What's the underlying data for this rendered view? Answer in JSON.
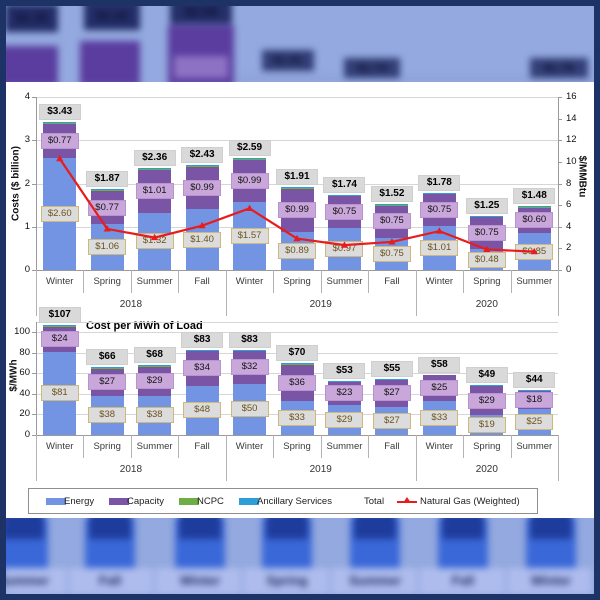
{
  "background": {
    "top_bar_labels": [
      "$2.36",
      "$2.43",
      "$2.59"
    ],
    "top_floating_labels": [
      "$1.91",
      "$1.74",
      "$1.78"
    ],
    "bottom_season_labels": [
      "Summer",
      "Fall",
      "Winter",
      "Spring",
      "Summer",
      "Fall",
      "Winter"
    ]
  },
  "colors": {
    "energy": "#7394e2",
    "capacity": "#7a55a5",
    "ncpc": "#6fae44",
    "ancillary": "#2e9ed9",
    "natural_gas_line": "#e81c1c",
    "total_badge_bg": "#d9d9d9",
    "capacity_badge_bg": "#c9a7db",
    "frame_border": "#1d3366",
    "backdrop": "#93a9df"
  },
  "chart_data": [
    {
      "type": "bar-line",
      "title": "",
      "ylabel_left": "Costs ($ billion)",
      "ylabel_right": "$/MMBtu",
      "ylim_left": [
        0,
        4
      ],
      "yticks_left": [
        0,
        1,
        2,
        3,
        4
      ],
      "ylim_right": [
        0,
        16
      ],
      "yticks_right": [
        0,
        2,
        4,
        6,
        8,
        10,
        12,
        14,
        16
      ],
      "grid": true,
      "legend_position": "bottom",
      "categories": [
        "Winter",
        "Spring",
        "Summer",
        "Fall",
        "Winter",
        "Spring",
        "Summer",
        "Fall",
        "Winter",
        "Spring",
        "Summer"
      ],
      "year_groups": [
        {
          "label": "2018",
          "span": 4
        },
        {
          "label": "2019",
          "span": 4
        },
        {
          "label": "2020",
          "span": 3
        }
      ],
      "series": [
        {
          "name": "Energy",
          "values": [
            2.6,
            1.06,
            1.32,
            1.4,
            1.57,
            0.89,
            0.97,
            0.75,
            1.01,
            0.48,
            0.85
          ]
        },
        {
          "name": "Capacity",
          "values": [
            0.77,
            0.77,
            1.01,
            0.99,
            0.99,
            0.99,
            0.75,
            0.75,
            0.75,
            0.75,
            0.6
          ]
        },
        {
          "name": "NCPC",
          "values": [
            0.03,
            0.02,
            0.015,
            0.02,
            0.015,
            0.015,
            0.01,
            0.01,
            0.01,
            0.01,
            0.015
          ]
        },
        {
          "name": "Ancillary Services",
          "values": [
            0.03,
            0.02,
            0.015,
            0.02,
            0.015,
            0.015,
            0.01,
            0.01,
            0.01,
            0.01,
            0.015
          ]
        }
      ],
      "total_labels": [
        "$3.43",
        "$1.87",
        "$2.36",
        "$2.43",
        "$2.59",
        "$1.91",
        "$1.74",
        "$1.52",
        "$1.78",
        "$1.25",
        "$1.48"
      ],
      "energy_labels": [
        "$2.60",
        "$1.06",
        "$1.32",
        "$1.40",
        "$1.57",
        "$0.89",
        "$0.97",
        "$0.75",
        "$1.01",
        "$0.48",
        "$0.85"
      ],
      "capacity_labels": [
        "$0.77",
        "$0.77",
        "$1.01",
        "$0.99",
        "$0.99",
        "$0.99",
        "$0.75",
        "$0.75",
        "$0.75",
        "$0.75",
        "$0.60"
      ],
      "line_series": {
        "name": "Natural Gas (Weighted)",
        "axis": "right",
        "values": [
          10.3,
          3.8,
          3.0,
          4.1,
          5.7,
          2.9,
          2.3,
          2.6,
          3.6,
          1.9,
          1.7
        ]
      }
    },
    {
      "type": "bar",
      "title": "Cost per MWh of Load",
      "ylabel_left": "$/MWh",
      "ylim_left": [
        0,
        110
      ],
      "yticks_left": [
        0,
        20,
        40,
        60,
        80,
        100
      ],
      "grid": true,
      "categories": [
        "Winter",
        "Spring",
        "Summer",
        "Fall",
        "Winter",
        "Spring",
        "Summer",
        "Fall",
        "Winter",
        "Spring",
        "Summer"
      ],
      "year_groups": [
        {
          "label": "2018",
          "span": 4
        },
        {
          "label": "2019",
          "span": 4
        },
        {
          "label": "2020",
          "span": 3
        }
      ],
      "series": [
        {
          "name": "Energy",
          "values": [
            81,
            38,
            38,
            48,
            50,
            33,
            29,
            27,
            33,
            19,
            25
          ]
        },
        {
          "name": "Capacity",
          "values": [
            24,
            27,
            29,
            34,
            32,
            36,
            23,
            27,
            25,
            29,
            18
          ]
        },
        {
          "name": "NCPC",
          "values": [
            1,
            0.5,
            0.5,
            0.5,
            0.5,
            0.5,
            0.5,
            0.5,
            0,
            0.5,
            0.5
          ]
        },
        {
          "name": "Ancillary Services",
          "values": [
            1,
            0.5,
            0.5,
            0.5,
            0.5,
            0.5,
            0.5,
            0.5,
            0,
            0.5,
            0.5
          ]
        }
      ],
      "total_labels": [
        "$107",
        "$66",
        "$68",
        "$83",
        "$83",
        "$70",
        "$53",
        "$55",
        "$58",
        "$49",
        "$44"
      ],
      "energy_labels": [
        "$81",
        "$38",
        "$38",
        "$48",
        "$50",
        "$33",
        "$29",
        "$27",
        "$33",
        "$19",
        "$25"
      ],
      "capacity_labels": [
        "$24",
        "$27",
        "$29",
        "$34",
        "$32",
        "$36",
        "$23",
        "$27",
        "$25",
        "$29",
        "$18"
      ]
    }
  ],
  "legend": {
    "items": [
      {
        "label": "Energy",
        "swatch": "bar",
        "color": "#7394e2"
      },
      {
        "label": "Capacity",
        "swatch": "bar",
        "color": "#7a55a5"
      },
      {
        "label": "NCPC",
        "swatch": "bar",
        "color": "#6fae44"
      },
      {
        "label": "Ancillary Services",
        "swatch": "bar",
        "color": "#2e9ed9"
      },
      {
        "label": "Total",
        "swatch": "none",
        "color": null
      },
      {
        "label": "Natural Gas (Weighted)",
        "swatch": "line",
        "color": "#e81c1c"
      }
    ]
  }
}
